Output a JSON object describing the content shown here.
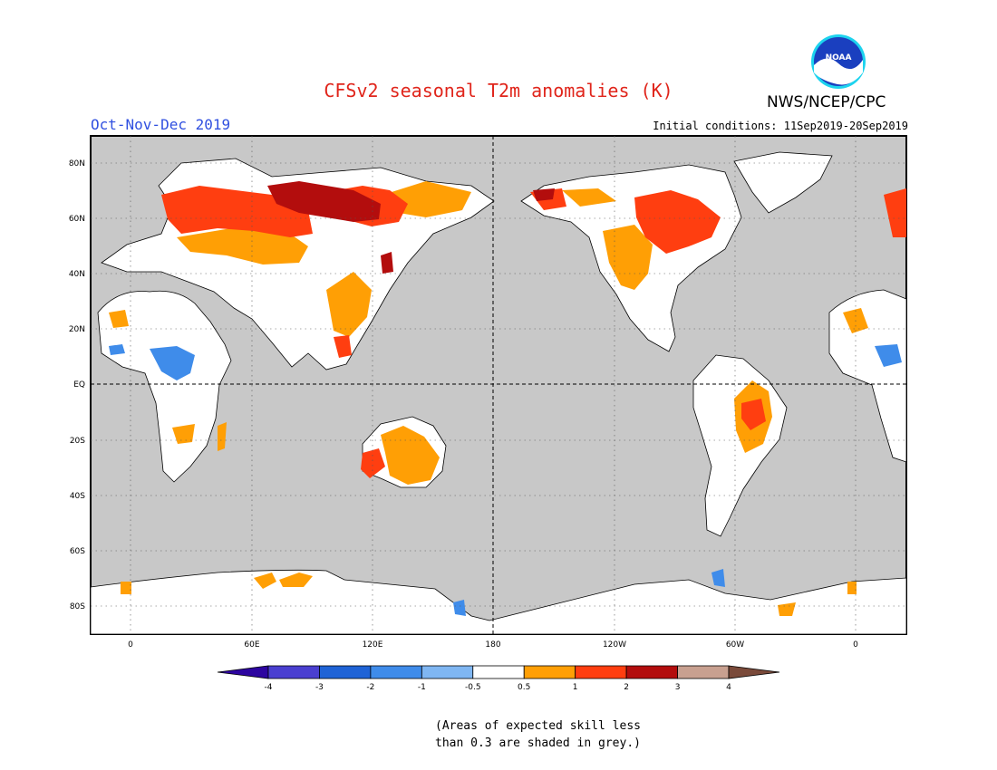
{
  "title": "CFSv2 seasonal T2m anomalies (K)",
  "agency": "NWS/NCEP/CPC",
  "logo_text": "NOAA",
  "season": "Oct-Nov-Dec 2019",
  "initial_conditions": "Initial conditions: 11Sep2019-20Sep2019",
  "lat_labels": [
    "80N",
    "60N",
    "40N",
    "20N",
    "EQ",
    "20S",
    "40S",
    "60S",
    "80S"
  ],
  "lon_labels": [
    "0",
    "60E",
    "120E",
    "180",
    "120W",
    "60W",
    "0"
  ],
  "colorbar": {
    "labels": [
      "-4",
      "-3",
      "-2",
      "-1",
      "-0.5",
      "0.5",
      "1",
      "2",
      "3",
      "4"
    ],
    "colors": [
      "#2d05a0",
      "#4a3fd0",
      "#1f63d6",
      "#3f8cea",
      "#7fb6f2",
      "#ffffff",
      "#ff9f05",
      "#ff3e10",
      "#b30d0d",
      "#c8a090",
      "#7a4a3a"
    ]
  },
  "note_lines": [
    "(Areas of expected skill less",
    "than 0.3 are shaded in grey.)"
  ],
  "colors": {
    "title": "#e0251b",
    "season": "#3050e0",
    "ocean_grey": "#c8c8c8",
    "no_skill_land": "#ffffff",
    "warm_05_1": "#ff9f05",
    "warm_1_2": "#ff3e10",
    "warm_2_3": "#b30d0d",
    "cool": "#3f8cea"
  }
}
